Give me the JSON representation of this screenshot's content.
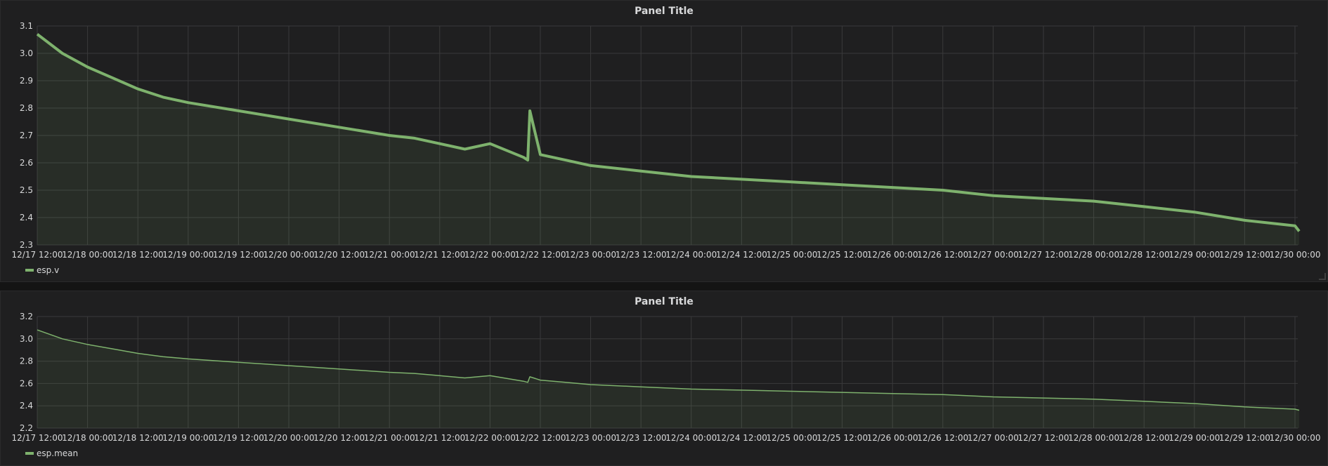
{
  "colors": {
    "series": "#7eb26d",
    "grid": "#3a3a3b",
    "fill": "rgba(126,178,109,0.10)"
  },
  "panels": [
    {
      "title": "Panel Title",
      "legend": "esp.v"
    },
    {
      "title": "Panel Title",
      "legend": "esp.mean"
    }
  ],
  "chart_data": [
    {
      "type": "area",
      "title": "Panel Title",
      "xlabel": "",
      "ylabel": "",
      "x_ticks": [
        "12/17 12:00",
        "12/18 00:00",
        "12/18 12:00",
        "12/19 00:00",
        "12/19 12:00",
        "12/20 00:00",
        "12/20 12:00",
        "12/21 00:00",
        "12/21 12:00",
        "12/22 00:00",
        "12/22 12:00",
        "12/23 00:00",
        "12/23 12:00",
        "12/24 00:00",
        "12/24 12:00",
        "12/25 00:00",
        "12/25 12:00",
        "12/26 00:00",
        "12/26 12:00",
        "12/27 00:00",
        "12/27 12:00",
        "12/28 00:00",
        "12/28 12:00",
        "12/29 00:00",
        "12/29 12:00",
        "12/30 00:00"
      ],
      "y_ticks": [
        "3.1",
        "3.0",
        "2.9",
        "2.8",
        "2.7",
        "2.6",
        "2.5",
        "2.4",
        "2.3"
      ],
      "ylim": [
        2.3,
        3.1
      ],
      "xlim": [
        "12/17 12:00",
        "12/30 00:00"
      ],
      "grid": true,
      "legend_position": "bottom-left",
      "series": [
        {
          "name": "esp.v",
          "x": [
            "12/17 12:00",
            "12/17 18:00",
            "12/18 00:00",
            "12/18 06:00",
            "12/18 12:00",
            "12/18 18:00",
            "12/19 00:00",
            "12/19 12:00",
            "12/20 00:00",
            "12/20 12:00",
            "12/21 00:00",
            "12/21 06:00",
            "12/21 12:00",
            "12/21 18:00",
            "12/22 00:00",
            "12/22 08:00",
            "12/22 09:00",
            "12/22 09:30",
            "12/22 12:00",
            "12/22 18:00",
            "12/23 00:00",
            "12/23 12:00",
            "12/24 00:00",
            "12/24 12:00",
            "12/25 00:00",
            "12/25 12:00",
            "12/26 00:00",
            "12/26 12:00",
            "12/27 00:00",
            "12/27 12:00",
            "12/28 00:00",
            "12/28 12:00",
            "12/29 00:00",
            "12/29 12:00",
            "12/30 00:00",
            "12/30 01:00"
          ],
          "values": [
            3.07,
            3.0,
            2.95,
            2.91,
            2.87,
            2.84,
            2.82,
            2.79,
            2.76,
            2.73,
            2.7,
            2.69,
            2.67,
            2.65,
            2.67,
            2.62,
            2.61,
            2.79,
            2.63,
            2.61,
            2.59,
            2.57,
            2.55,
            2.54,
            2.53,
            2.52,
            2.51,
            2.5,
            2.48,
            2.47,
            2.46,
            2.44,
            2.42,
            2.39,
            2.37,
            2.35
          ]
        }
      ]
    },
    {
      "type": "area",
      "title": "Panel Title",
      "xlabel": "",
      "ylabel": "",
      "x_ticks": [
        "12/17 12:00",
        "12/18 00:00",
        "12/18 12:00",
        "12/19 00:00",
        "12/19 12:00",
        "12/20 00:00",
        "12/20 12:00",
        "12/21 00:00",
        "12/21 12:00",
        "12/22 00:00",
        "12/22 12:00",
        "12/23 00:00",
        "12/23 12:00",
        "12/24 00:00",
        "12/24 12:00",
        "12/25 00:00",
        "12/25 12:00",
        "12/26 00:00",
        "12/26 12:00",
        "12/27 00:00",
        "12/27 12:00",
        "12/28 00:00",
        "12/28 12:00",
        "12/29 00:00",
        "12/29 12:00",
        "12/30 00:00"
      ],
      "y_ticks": [
        "3.2",
        "3.0",
        "2.8",
        "2.6",
        "2.4",
        "2.2"
      ],
      "ylim": [
        2.2,
        3.2
      ],
      "xlim": [
        "12/17 12:00",
        "12/30 00:00"
      ],
      "grid": true,
      "legend_position": "bottom-left",
      "series": [
        {
          "name": "esp.mean",
          "x": [
            "12/17 12:00",
            "12/17 18:00",
            "12/18 00:00",
            "12/18 06:00",
            "12/18 12:00",
            "12/18 18:00",
            "12/19 00:00",
            "12/19 12:00",
            "12/20 00:00",
            "12/20 12:00",
            "12/21 00:00",
            "12/21 06:00",
            "12/21 12:00",
            "12/21 18:00",
            "12/22 00:00",
            "12/22 08:00",
            "12/22 09:00",
            "12/22 09:30",
            "12/22 12:00",
            "12/22 18:00",
            "12/23 00:00",
            "12/23 12:00",
            "12/24 00:00",
            "12/24 12:00",
            "12/25 00:00",
            "12/25 12:00",
            "12/26 00:00",
            "12/26 12:00",
            "12/27 00:00",
            "12/27 12:00",
            "12/28 00:00",
            "12/28 12:00",
            "12/29 00:00",
            "12/29 12:00",
            "12/30 00:00",
            "12/30 01:00"
          ],
          "values": [
            3.08,
            3.0,
            2.95,
            2.91,
            2.87,
            2.84,
            2.82,
            2.79,
            2.76,
            2.73,
            2.7,
            2.69,
            2.67,
            2.65,
            2.67,
            2.62,
            2.61,
            2.66,
            2.63,
            2.61,
            2.59,
            2.57,
            2.55,
            2.54,
            2.53,
            2.52,
            2.51,
            2.5,
            2.48,
            2.47,
            2.46,
            2.44,
            2.42,
            2.39,
            2.37,
            2.36
          ]
        }
      ]
    }
  ]
}
